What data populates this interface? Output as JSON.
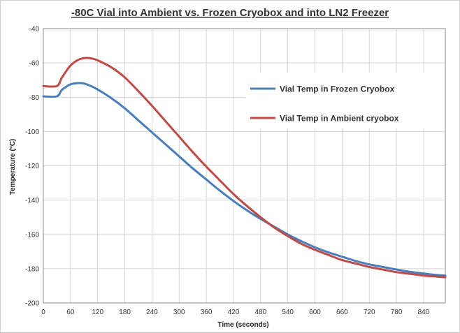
{
  "chart_data": {
    "type": "line",
    "title": "-80C Vial into Ambient vs. Frozen Cryobox and into LN2 Freezer",
    "xlabel": "Time (seconds)",
    "ylabel": "Temperature (°C)",
    "xlim": [
      0,
      888
    ],
    "ylim": [
      -200,
      -40
    ],
    "xticks": [
      0,
      60,
      120,
      180,
      240,
      300,
      360,
      420,
      480,
      540,
      600,
      660,
      720,
      780,
      840
    ],
    "yticks": [
      -40,
      -60,
      -80,
      -100,
      -120,
      -140,
      -160,
      -180,
      -200
    ],
    "grid": true,
    "legend_position": "top-right",
    "series": [
      {
        "name": "Vial Temp in Frozen Cryobox",
        "color": "#4a7ebb",
        "x": [
          0,
          30,
          40,
          50,
          60,
          75,
          90,
          105,
          120,
          150,
          180,
          210,
          240,
          270,
          300,
          330,
          360,
          390,
          420,
          450,
          480,
          510,
          540,
          570,
          600,
          630,
          660,
          690,
          720,
          750,
          780,
          810,
          840,
          870,
          888
        ],
        "y": [
          -79.5,
          -79.5,
          -76,
          -74,
          -72.5,
          -71.8,
          -72,
          -73.5,
          -75.5,
          -80.5,
          -86.5,
          -93.5,
          -100.5,
          -107.5,
          -114.5,
          -121.5,
          -128,
          -134.5,
          -140.5,
          -146,
          -151,
          -155.5,
          -160,
          -164,
          -167.5,
          -170.5,
          -173,
          -175.5,
          -177.5,
          -179,
          -180.5,
          -181.8,
          -182.8,
          -183.7,
          -184
        ]
      },
      {
        "name": "Vial Temp in Ambient cryobox",
        "color": "#be4b48",
        "x": [
          0,
          30,
          40,
          50,
          60,
          75,
          90,
          105,
          120,
          150,
          180,
          210,
          240,
          270,
          300,
          330,
          360,
          390,
          420,
          450,
          480,
          510,
          540,
          570,
          600,
          630,
          660,
          690,
          720,
          750,
          780,
          810,
          840,
          870,
          888
        ],
        "y": [
          -73.5,
          -73.5,
          -69,
          -65,
          -61.5,
          -58.5,
          -57.2,
          -57.3,
          -58.5,
          -62.5,
          -68.5,
          -76.5,
          -85,
          -94,
          -103,
          -112,
          -120.5,
          -128.5,
          -136.5,
          -143.5,
          -150,
          -156,
          -161,
          -165.5,
          -169,
          -172,
          -175,
          -177,
          -179,
          -180.5,
          -182,
          -183,
          -184,
          -184.6,
          -185
        ]
      }
    ]
  }
}
